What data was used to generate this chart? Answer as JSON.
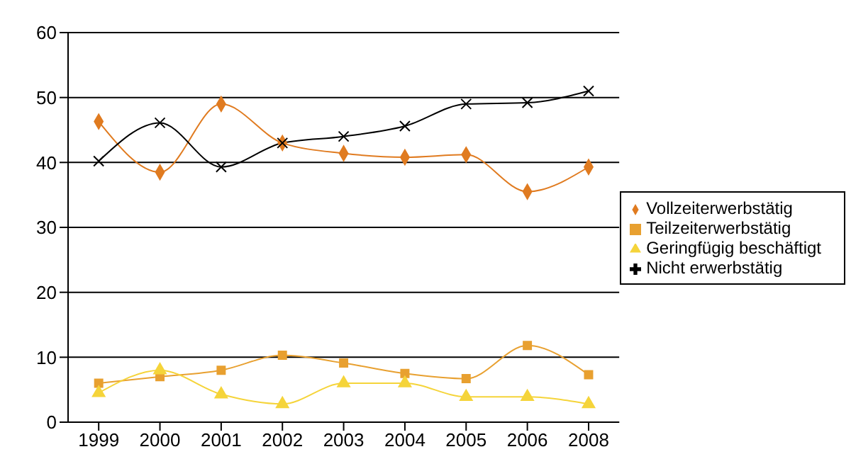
{
  "chart_data": {
    "type": "line",
    "categories": [
      "1999",
      "2000",
      "2001",
      "2002",
      "2003",
      "2004",
      "2005",
      "2006",
      "2008"
    ],
    "series": [
      {
        "name": "Vollzeiterwerbstätig",
        "color": "#e07b20",
        "marker": "diamond",
        "values": [
          46.3,
          38.5,
          49,
          43,
          41.4,
          40.8,
          41.2,
          35.5,
          39.3
        ]
      },
      {
        "name": "Teilzeiterwerbstätig",
        "color": "#e8a030",
        "marker": "square",
        "values": [
          6,
          7,
          8,
          10.3,
          9.1,
          7.5,
          6.7,
          11.8,
          7.3
        ]
      },
      {
        "name": "Geringfügig beschäftigt",
        "color": "#f5d43a",
        "marker": "triangle",
        "values": [
          4.5,
          8,
          4.3,
          2.8,
          6,
          6,
          3.9,
          3.9,
          2.8
        ]
      },
      {
        "name": "Nicht erwerbstätig",
        "color": "#000000",
        "marker": "cross",
        "values": [
          40.2,
          46.1,
          39.3,
          43,
          44,
          45.6,
          49,
          49.2,
          51
        ]
      }
    ],
    "ylim": [
      0,
      60
    ],
    "yticks": [
      0,
      10,
      20,
      30,
      40,
      50,
      60
    ],
    "grid": "y",
    "legend": "right",
    "line_style": "solid"
  }
}
